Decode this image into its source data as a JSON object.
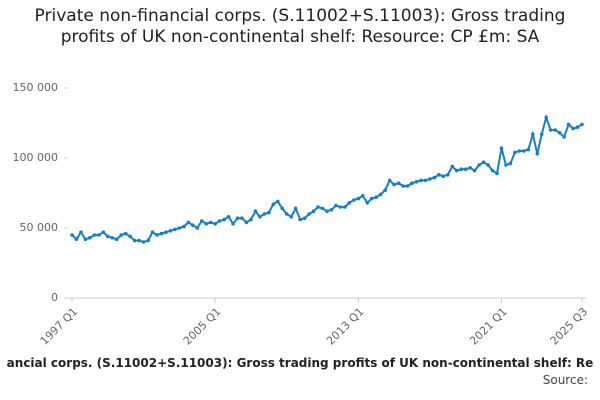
{
  "chart_data": {
    "type": "line",
    "title": "Private non-financial corps. (S.11002+S.11003): Gross trading profits of UK non-continental shelf: Resource: CP £m: SA",
    "footer": "ancial corps. (S.11002+S.11003): Gross trading profits of UK non-continental shelf: Re",
    "source": "Source:",
    "categories": [
      "1997 Q1",
      null,
      null,
      null,
      null,
      null,
      null,
      null,
      null,
      null,
      null,
      null,
      null,
      null,
      null,
      null,
      null,
      null,
      null,
      null,
      null,
      null,
      null,
      null,
      null,
      null,
      null,
      null,
      null,
      null,
      null,
      null,
      "2005 Q1",
      null,
      null,
      null,
      null,
      null,
      null,
      null,
      null,
      null,
      null,
      null,
      null,
      null,
      null,
      null,
      null,
      null,
      null,
      null,
      null,
      null,
      null,
      null,
      null,
      null,
      null,
      null,
      null,
      null,
      null,
      null,
      "2013 Q1",
      null,
      null,
      null,
      null,
      null,
      null,
      null,
      null,
      null,
      null,
      null,
      null,
      null,
      null,
      null,
      null,
      null,
      null,
      null,
      null,
      null,
      null,
      null,
      null,
      null,
      null,
      null,
      null,
      null,
      null,
      null,
      "2021 Q1",
      null,
      null,
      null,
      null,
      null,
      null,
      null,
      null,
      null,
      null,
      null,
      null,
      null,
      null,
      null,
      null,
      null,
      "2025 Q3"
    ],
    "series": [
      {
        "color": "#1a7fc1",
        "values": [
          45000,
          42000,
          47000,
          42000,
          43000,
          45000,
          45000,
          47000,
          44000,
          43000,
          42000,
          45000,
          46000,
          44000,
          41000,
          41000,
          40000,
          41000,
          47000,
          45000,
          46000,
          47000,
          48000,
          49000,
          50000,
          51000,
          54000,
          52000,
          50000,
          55000,
          53000,
          54000,
          53000,
          55000,
          56000,
          58000,
          53000,
          57000,
          57000,
          54000,
          56000,
          62000,
          58000,
          60000,
          61000,
          67000,
          69000,
          64000,
          60000,
          58000,
          64000,
          56000,
          57000,
          60000,
          62000,
          65000,
          64000,
          62000,
          63000,
          66000,
          65000,
          65000,
          68000,
          70000,
          71000,
          73000,
          68000,
          71000,
          72000,
          74000,
          77000,
          84000,
          81000,
          82000,
          80000,
          80000,
          82000,
          83000,
          84000,
          84000,
          85000,
          86000,
          88000,
          87000,
          88000,
          94000,
          91000,
          92000,
          92000,
          93000,
          91000,
          95000,
          97000,
          95000,
          91000,
          89000,
          107000,
          95000,
          96000,
          104000,
          105000,
          105000,
          106000,
          117000,
          103000,
          117000,
          129000,
          120000,
          120000,
          118000,
          115000,
          124000,
          121000,
          122000,
          124000
        ]
      }
    ],
    "ylim": [
      0,
      150000
    ],
    "yticks": [
      0,
      {
        "value": 50000,
        "label": "50 000"
      },
      {
        "value": 100000,
        "label": "100 000"
      },
      {
        "value": 150000,
        "label": "150 000"
      }
    ]
  }
}
